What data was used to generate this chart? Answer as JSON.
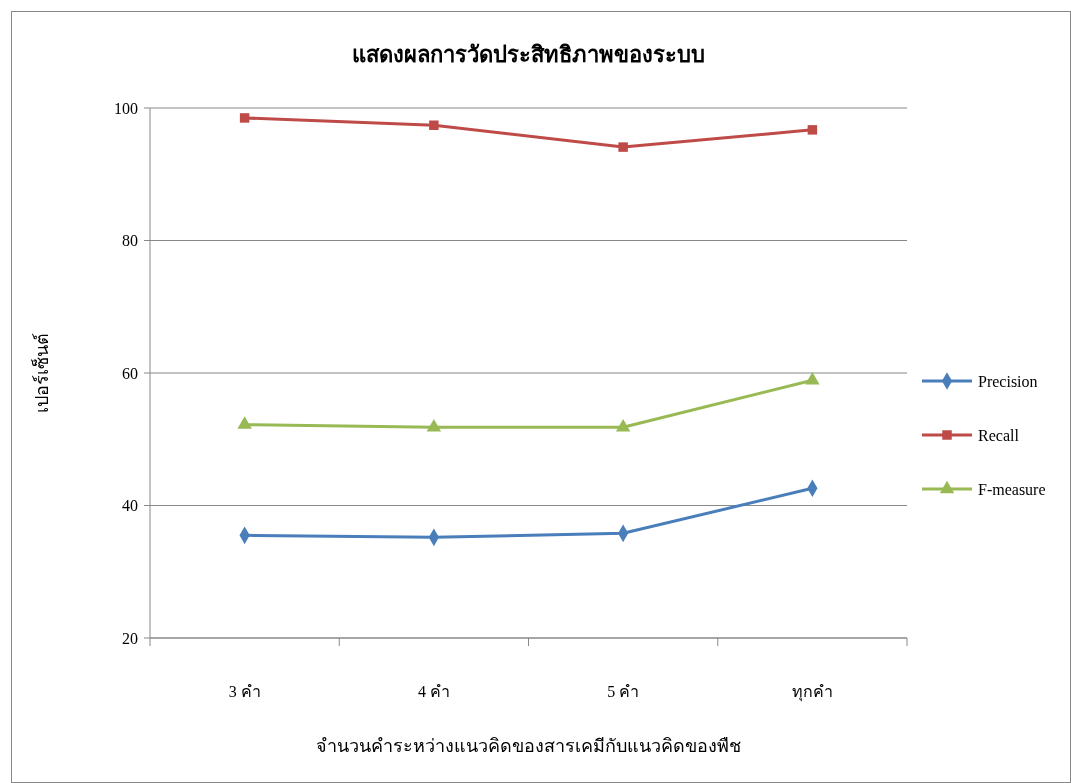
{
  "chart_data": {
    "type": "line",
    "title": "แสดงผลการวัดประสิทธิภาพของระบบ",
    "xlabel": "จำนวนคำระหว่างแนวคิดของสารเคมีกับแนวคิดของพืช",
    "ylabel": "เปอร์เซ็นต์",
    "categories": [
      "3 คำ",
      "4 คำ",
      "5 คำ",
      "ทุกคำ"
    ],
    "series": [
      {
        "name": "Precision",
        "color": "#4a7ebb",
        "marker": "diamond",
        "values": [
          35.5,
          35.2,
          35.8,
          42.6
        ]
      },
      {
        "name": "Recall",
        "color": "#be4b48",
        "marker": "square",
        "values": [
          98.5,
          97.4,
          94.1,
          96.7
        ]
      },
      {
        "name": "F-measure",
        "color": "#98b954",
        "marker": "triangle",
        "values": [
          52.2,
          51.8,
          51.8,
          58.9
        ]
      }
    ],
    "ylim": [
      20,
      100
    ],
    "yticks": [
      20,
      40,
      60,
      80,
      100
    ],
    "grid": "y",
    "legend": "right"
  }
}
